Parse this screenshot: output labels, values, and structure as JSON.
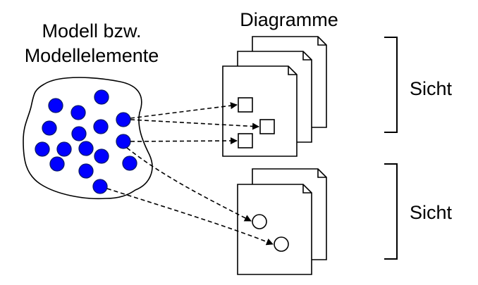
{
  "model": {
    "title_line1": "Modell bzw.",
    "title_line2": "Modellelemente"
  },
  "diagrams": {
    "title": "Diagramme"
  },
  "views": [
    {
      "label": "Sicht"
    },
    {
      "label": "Sicht"
    }
  ],
  "colors": {
    "element_fill": "#0000ff",
    "element_stroke": "#0a1a6a",
    "line": "#000000",
    "page_fill": "#ffffff"
  }
}
